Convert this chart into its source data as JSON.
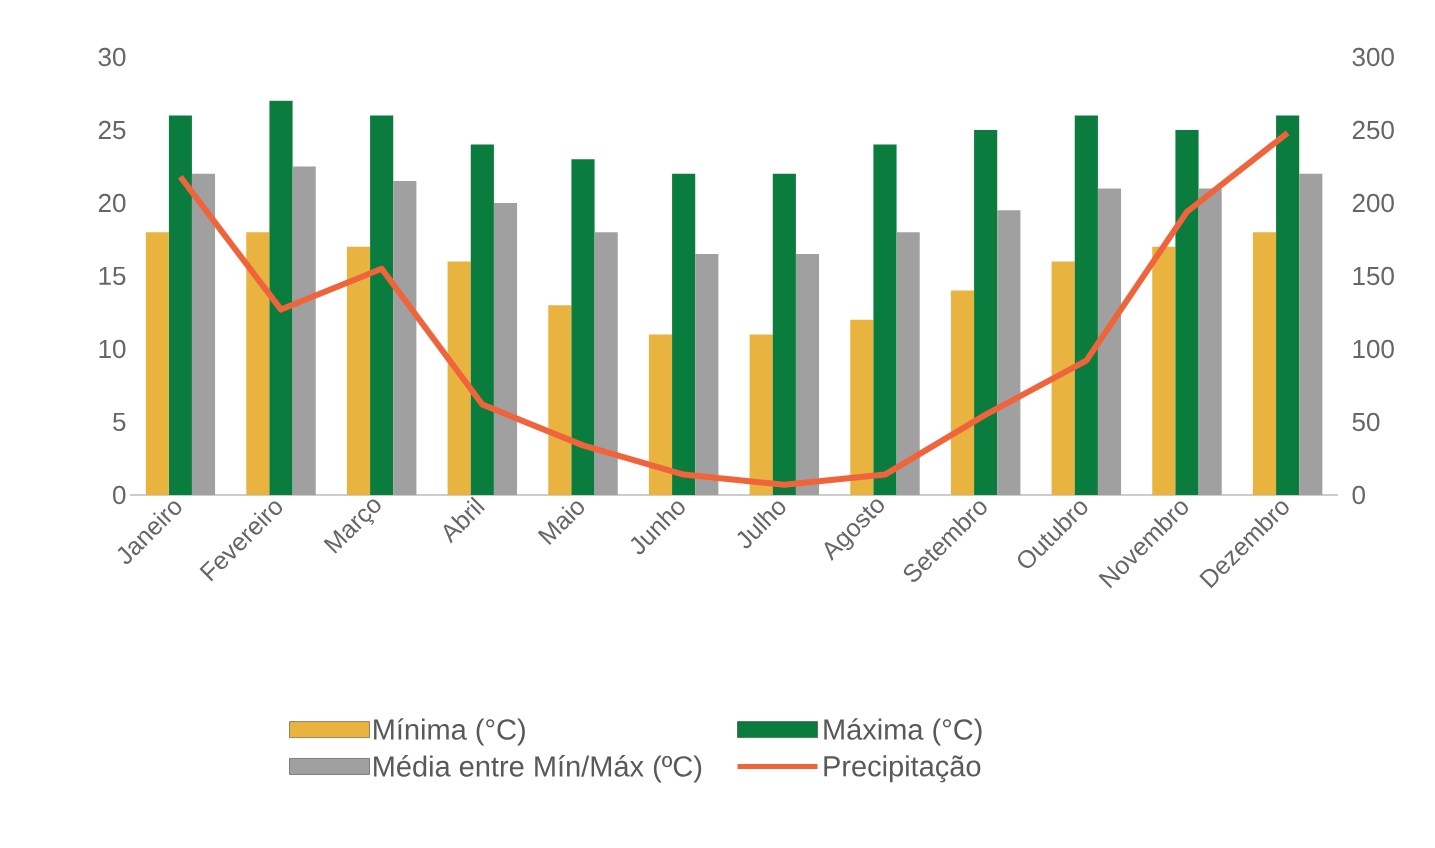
{
  "chart_data": {
    "type": "bar",
    "categories": [
      "Janeiro",
      "Fevereiro",
      "Março",
      "Abril",
      "Maio",
      "Junho",
      "Julho",
      "Agosto",
      "Setembro",
      "Outubro",
      "Novembro",
      "Dezembro"
    ],
    "series": [
      {
        "name": "Mínima (°C)",
        "color": "#e8b33e",
        "values": [
          18,
          18,
          17,
          16,
          13,
          11,
          11,
          12,
          14,
          16,
          17,
          18
        ]
      },
      {
        "name": "Máxima (°C)",
        "color": "#0a7d3e",
        "values": [
          26,
          27,
          26,
          24,
          23,
          22,
          22,
          24,
          25,
          26,
          25,
          26
        ]
      },
      {
        "name": "Média entre Mín/Máx (ºC)",
        "color": "#a0a0a0",
        "values": [
          22,
          22.5,
          21.5,
          20,
          18,
          16.5,
          16.5,
          18,
          19.5,
          21,
          21,
          22
        ]
      },
      {
        "name": "Precipitação",
        "type": "line",
        "axis": "y2",
        "color": "#f0643c",
        "values": [
          218,
          127,
          155,
          62,
          34,
          14,
          7,
          14,
          55,
          92,
          194,
          248
        ]
      }
    ],
    "ylim": [
      0,
      30
    ],
    "yticks": [
      0,
      5,
      10,
      15,
      20,
      25,
      30
    ],
    "y2lim": [
      0,
      300
    ],
    "y2ticks": [
      0,
      50,
      100,
      150,
      200,
      250,
      300
    ],
    "grid": false,
    "legend": "bottom"
  }
}
